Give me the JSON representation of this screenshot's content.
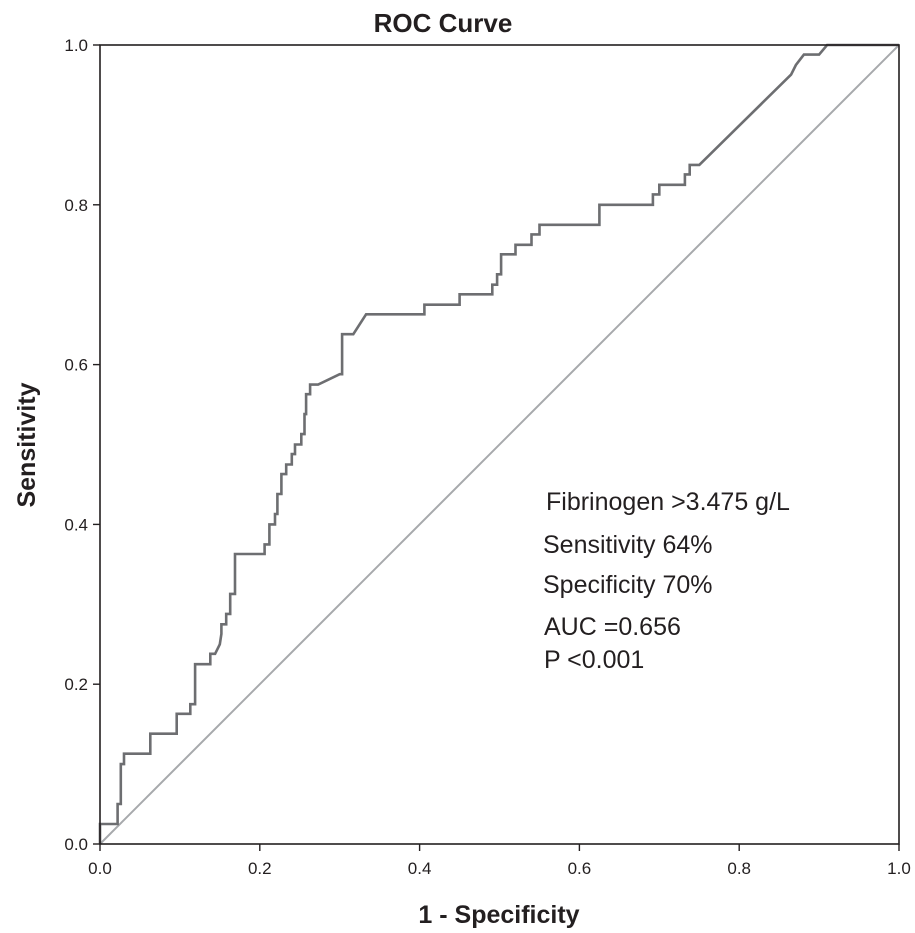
{
  "chart_data": {
    "type": "line",
    "title": "ROC Curve",
    "xlabel": "1 - Specificity",
    "ylabel": "Sensitivity",
    "xlim": [
      0,
      1
    ],
    "ylim": [
      0,
      1
    ],
    "x_ticks": [
      "0.0",
      "0.2",
      "0.4",
      "0.6",
      "0.8",
      "1.0"
    ],
    "y_ticks": [
      "0.0",
      "0.2",
      "0.4",
      "0.6",
      "0.8",
      "1.0"
    ],
    "grid": false,
    "colors": {
      "roc_curve": "#6d6e71",
      "reference_line": "#a7a9ac",
      "frame": "#231f20"
    },
    "series": [
      {
        "x": [
          0,
          0,
          0.022,
          0.022,
          0.026,
          0.026,
          0.03,
          0.03,
          0.063,
          0.063,
          0.096,
          0.096,
          0.113,
          0.113,
          0.119,
          0.119,
          0.138,
          0.138,
          0.144,
          0.15,
          0.152,
          0.152,
          0.158,
          0.158,
          0.163,
          0.163,
          0.169,
          0.169,
          0.206,
          0.206,
          0.212,
          0.212,
          0.219,
          0.219,
          0.222,
          0.222,
          0.227,
          0.227,
          0.233,
          0.233,
          0.24,
          0.24,
          0.244,
          0.244,
          0.252,
          0.252,
          0.256,
          0.256,
          0.258,
          0.258,
          0.263,
          0.263,
          0.273,
          0.273,
          0.3,
          0.303,
          0.303,
          0.317,
          0.333,
          0.406,
          0.406,
          0.45,
          0.45,
          0.491,
          0.491,
          0.497,
          0.497,
          0.502,
          0.502,
          0.52,
          0.52,
          0.54,
          0.54,
          0.55,
          0.55,
          0.563,
          0.563,
          0.625,
          0.625,
          0.692,
          0.692,
          0.7,
          0.7,
          0.732,
          0.732,
          0.738,
          0.738,
          0.75,
          0.865,
          0.865,
          0.871,
          0.871,
          0.881,
          0.881,
          0.9,
          0.9,
          0.91,
          0.91,
          1.0
        ],
        "y": [
          0,
          0.025,
          0.025,
          0.05,
          0.05,
          0.1,
          0.1,
          0.113,
          0.113,
          0.138,
          0.138,
          0.163,
          0.163,
          0.175,
          0.175,
          0.225,
          0.225,
          0.238,
          0.238,
          0.25,
          0.263,
          0.275,
          0.275,
          0.288,
          0.288,
          0.313,
          0.313,
          0.363,
          0.363,
          0.375,
          0.375,
          0.4,
          0.4,
          0.413,
          0.413,
          0.438,
          0.438,
          0.463,
          0.463,
          0.475,
          0.475,
          0.488,
          0.488,
          0.5,
          0.5,
          0.513,
          0.513,
          0.538,
          0.538,
          0.563,
          0.563,
          0.575,
          0.575,
          0.575,
          0.588,
          0.588,
          0.638,
          0.638,
          0.663,
          0.663,
          0.675,
          0.675,
          0.688,
          0.688,
          0.7,
          0.7,
          0.713,
          0.713,
          0.738,
          0.738,
          0.75,
          0.75,
          0.763,
          0.763,
          0.775,
          0.775,
          0.775,
          0.775,
          0.8,
          0.8,
          0.813,
          0.813,
          0.825,
          0.825,
          0.838,
          0.838,
          0.85,
          0.85,
          0.963,
          0.963,
          0.975,
          0.975,
          0.988,
          0.988,
          0.988,
          0.988,
          1.0,
          1.0,
          1.0
        ]
      }
    ],
    "reference_line": {
      "x": [
        0,
        1
      ],
      "y": [
        0,
        1
      ]
    },
    "annotations": [
      "Fibrinogen >3.475 g/L",
      "Sensitivity 64%",
      "Specificity 70%",
      "AUC =0.656",
      "P <0.001"
    ]
  }
}
